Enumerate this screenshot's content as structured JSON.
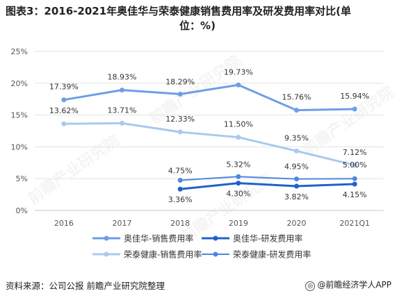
{
  "title_line1": "图表3：2016-2021年奥佳华与荣泰健康销售费用率及研发费用率对比(单",
  "title_line2": "位：%)",
  "source": "资料来源：公司公报 前瞻产业研究院整理",
  "credit": "@前瞻经济学人APP",
  "watermark": "前瞻产业研究院",
  "chart_data": {
    "type": "line",
    "categories": [
      "2016",
      "2017",
      "2018",
      "2019",
      "2020",
      "2021Q1"
    ],
    "y_ticks": [
      "0%",
      "5%",
      "10%",
      "15%",
      "20%",
      "25%"
    ],
    "ylim": [
      0,
      25
    ],
    "grid": true,
    "legend_position": "bottom",
    "series": [
      {
        "name": "奥佳华-销售费用率",
        "color": "#6d9ee6",
        "width": 3,
        "values": [
          17.39,
          18.93,
          18.29,
          19.73,
          15.76,
          15.94
        ],
        "labels": [
          "17.39%",
          "18.93%",
          "18.29%",
          "19.73%",
          "15.76%",
          "15.94%"
        ]
      },
      {
        "name": "荣泰健康-销售费用率",
        "color": "#a9c9ef",
        "width": 3,
        "values": [
          13.62,
          13.71,
          12.33,
          11.5,
          9.35,
          7.12
        ],
        "labels": [
          "13.62%",
          "13.71%",
          "12.33%",
          "11.50%",
          "9.35%",
          "7.12%"
        ]
      },
      {
        "name": "奥佳华-研发费用率",
        "color": "#2161c9",
        "width": 3,
        "values": [
          null,
          null,
          3.36,
          4.3,
          3.82,
          4.15
        ],
        "labels": [
          "",
          "",
          "3.36%",
          "4.30%",
          "3.82%",
          "4.15%"
        ]
      },
      {
        "name": "荣泰健康-研发费用率",
        "color": "#4f87dd",
        "width": 2,
        "values": [
          null,
          null,
          4.75,
          5.32,
          4.95,
          5.0
        ],
        "labels": [
          "",
          "",
          "4.75%",
          "5.32%",
          "4.95%",
          "5.00%"
        ]
      }
    ]
  }
}
